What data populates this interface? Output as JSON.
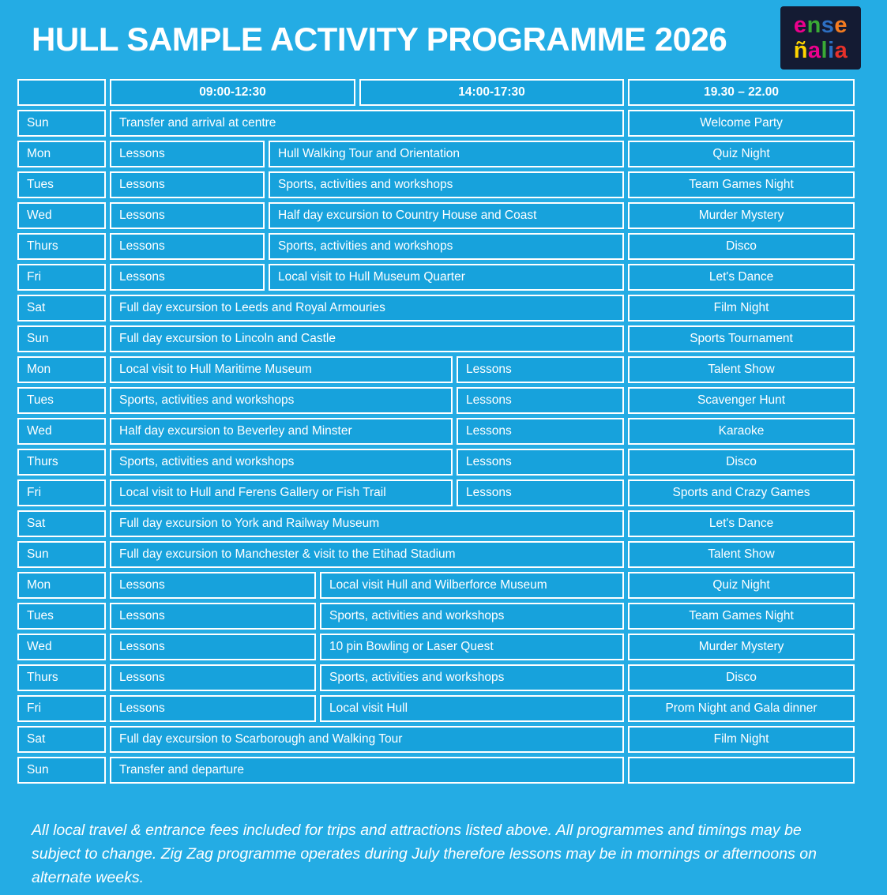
{
  "page": {
    "title": "HULL SAMPLE ACTIVITY PROGRAMME 2026",
    "background_color": "#24ACE4",
    "cell_color": "#17A2DC",
    "border_color": "#FFFFFF",
    "text_color": "#FFFFFF"
  },
  "logo": {
    "name": "ensenalia",
    "background_color": "#141B33",
    "line1": [
      {
        "ch": "e",
        "color": "#EC008C"
      },
      {
        "ch": "n",
        "color": "#3AAA35"
      },
      {
        "ch": "s",
        "color": "#2D6FC2"
      },
      {
        "ch": "e",
        "color": "#F47B20"
      }
    ],
    "line2": [
      {
        "ch": "ñ",
        "color": "#FFD500"
      },
      {
        "ch": "a",
        "color": "#EC008C"
      },
      {
        "ch": "l",
        "color": "#3AAA35"
      },
      {
        "ch": "i",
        "color": "#2D6FC2"
      },
      {
        "ch": "a",
        "color": "#E8312A"
      }
    ]
  },
  "table": {
    "header": {
      "slots": [
        "09:00-12:30",
        "14:00-17:30",
        "19.30 – 22.00"
      ]
    },
    "rows": [
      {
        "day": "Sun",
        "cells": [
          "Transfer and arrival at centre"
        ],
        "evening": "Welcome Party"
      },
      {
        "day": "Mon",
        "cells": [
          "Lessons",
          "Hull Walking Tour and Orientation"
        ],
        "evening": "Quiz Night"
      },
      {
        "day": "Tues",
        "cells": [
          "Lessons",
          "Sports, activities and workshops"
        ],
        "evening": "Team Games Night"
      },
      {
        "day": "Wed",
        "cells": [
          "Lessons",
          "Half day excursion to Country House and Coast"
        ],
        "evening": "Murder Mystery"
      },
      {
        "day": "Thurs",
        "cells": [
          "Lessons",
          "Sports, activities and workshops"
        ],
        "evening": "Disco"
      },
      {
        "day": "Fri",
        "cells": [
          "Lessons",
          "Local visit to Hull Museum Quarter"
        ],
        "evening": "Let's Dance"
      },
      {
        "day": "Sat",
        "cells": [
          "Full day excursion to Leeds and Royal Armouries"
        ],
        "evening": "Film Night"
      },
      {
        "day": "Sun",
        "cells": [
          "Full day excursion to Lincoln and Castle"
        ],
        "evening": "Sports Tournament"
      },
      {
        "day": "Mon",
        "cells": [
          "Local visit to Hull  Maritime Museum",
          "Lessons"
        ],
        "evening": "Talent Show"
      },
      {
        "day": "Tues",
        "cells": [
          "Sports, activities and workshops",
          "Lessons"
        ],
        "evening": "Scavenger Hunt"
      },
      {
        "day": "Wed",
        "cells": [
          "Half day excursion to Beverley and Minster",
          "Lessons"
        ],
        "evening": "Karaoke"
      },
      {
        "day": "Thurs",
        "cells": [
          "Sports, activities and workshops",
          "Lessons"
        ],
        "evening": "Disco"
      },
      {
        "day": "Fri",
        "cells": [
          "Local visit to Hull and Ferens Gallery or Fish Trail",
          "Lessons"
        ],
        "evening": "Sports and Crazy Games"
      },
      {
        "day": "Sat",
        "cells": [
          "Full day excursion to York and Railway Museum"
        ],
        "evening": "Let's Dance"
      },
      {
        "day": "Sun",
        "cells": [
          "Full day excursion to Manchester & visit to the Etihad Stadium"
        ],
        "evening": "Talent Show"
      },
      {
        "day": "Mon",
        "cells": [
          "Lessons",
          "Local visit Hull and Wilberforce Museum"
        ],
        "evening": "Quiz Night"
      },
      {
        "day": "Tues",
        "cells": [
          "Lessons",
          "Sports, activities and workshops"
        ],
        "evening": "Team Games Night"
      },
      {
        "day": "Wed",
        "cells": [
          "Lessons",
          "10 pin Bowling or Laser Quest"
        ],
        "evening": "Murder Mystery"
      },
      {
        "day": "Thurs",
        "cells": [
          "Lessons",
          "Sports, activities and workshops"
        ],
        "evening": "Disco"
      },
      {
        "day": "Fri",
        "cells": [
          "Lessons",
          "Local visit Hull"
        ],
        "evening": "Prom Night and Gala dinner"
      },
      {
        "day": "Sat",
        "cells": [
          "Full day excursion to Scarborough and Walking Tour"
        ],
        "evening": "Film Night"
      },
      {
        "day": "Sun",
        "cells": [
          "Transfer and departure"
        ],
        "evening": ""
      }
    ]
  },
  "footer": {
    "note": "All local travel & entrance fees included for trips and attractions listed above. All programmes and timings may be subject to change. Zig Zag programme operates during July therefore lessons may be in mornings or afternoons on alternate weeks."
  }
}
